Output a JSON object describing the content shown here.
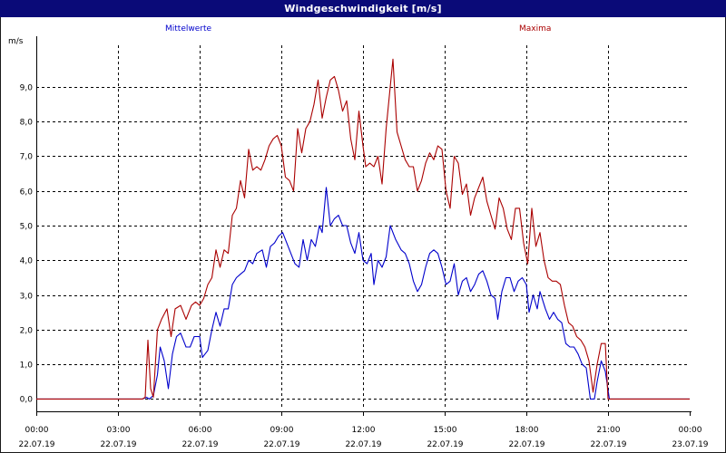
{
  "window": {
    "title": "Windgeschwindigkeit [m/s]"
  },
  "colors": {
    "titlebar": "#0a0a78",
    "mean": "#0000cc",
    "max": "#aa0000",
    "grid": "#000000"
  },
  "chart_data": {
    "type": "line",
    "title": "Windgeschwindigkeit [m/s]",
    "ylabel": "m/s",
    "xlabel": "",
    "ylim": [
      -0.25,
      10.2
    ],
    "xlim": [
      0,
      24
    ],
    "grid": true,
    "y_ticks": [
      0,
      1,
      2,
      3,
      4,
      5,
      6,
      7,
      8,
      9
    ],
    "y_tick_labels": [
      "0,0",
      "1,0",
      "2,0",
      "3,0",
      "4,0",
      "5,0",
      "6,0",
      "7,0",
      "8,0",
      "9,0"
    ],
    "x_ticks": [
      0,
      3,
      6,
      9,
      12,
      15,
      18,
      21,
      24
    ],
    "x_tick_labels": [
      {
        "time": "00:00",
        "date": "22.07.19"
      },
      {
        "time": "03:00",
        "date": "22.07.19"
      },
      {
        "time": "06:00",
        "date": "22.07.19"
      },
      {
        "time": "09:00",
        "date": "22.07.19"
      },
      {
        "time": "12:00",
        "date": "22.07.19"
      },
      {
        "time": "15:00",
        "date": "22.07.19"
      },
      {
        "time": "18:00",
        "date": "22.07.19"
      },
      {
        "time": "21:00",
        "date": "22.07.19"
      },
      {
        "time": "00:00",
        "date": "23.07.19"
      }
    ],
    "legend": {
      "placement": "top"
    },
    "series": [
      {
        "name": "Mittelwerte",
        "color": "#0000cc",
        "points": [
          [
            0,
            0
          ],
          [
            1,
            0
          ],
          [
            2,
            0
          ],
          [
            3,
            0
          ],
          [
            3.9,
            0
          ],
          [
            4.05,
            0.05
          ],
          [
            4.15,
            0.0
          ],
          [
            4.3,
            0.1
          ],
          [
            4.45,
            0.7
          ],
          [
            4.55,
            1.5
          ],
          [
            4.7,
            1.1
          ],
          [
            4.85,
            0.3
          ],
          [
            5.0,
            1.3
          ],
          [
            5.15,
            1.8
          ],
          [
            5.3,
            1.9
          ],
          [
            5.5,
            1.5
          ],
          [
            5.65,
            1.5
          ],
          [
            5.8,
            1.8
          ],
          [
            6.0,
            1.8
          ],
          [
            6.1,
            1.2
          ],
          [
            6.2,
            1.3
          ],
          [
            6.3,
            1.4
          ],
          [
            6.45,
            2.0
          ],
          [
            6.6,
            2.5
          ],
          [
            6.75,
            2.1
          ],
          [
            6.9,
            2.6
          ],
          [
            7.05,
            2.6
          ],
          [
            7.2,
            3.3
          ],
          [
            7.35,
            3.5
          ],
          [
            7.5,
            3.6
          ],
          [
            7.65,
            3.7
          ],
          [
            7.8,
            4.0
          ],
          [
            7.95,
            3.9
          ],
          [
            8.1,
            4.2
          ],
          [
            8.3,
            4.3
          ],
          [
            8.45,
            3.8
          ],
          [
            8.6,
            4.4
          ],
          [
            8.75,
            4.5
          ],
          [
            8.9,
            4.7
          ],
          [
            9.05,
            4.8
          ],
          [
            9.2,
            4.5
          ],
          [
            9.35,
            4.2
          ],
          [
            9.5,
            3.9
          ],
          [
            9.65,
            3.8
          ],
          [
            9.8,
            4.6
          ],
          [
            9.95,
            4.0
          ],
          [
            10.1,
            4.6
          ],
          [
            10.25,
            4.4
          ],
          [
            10.4,
            5.0
          ],
          [
            10.5,
            4.8
          ],
          [
            10.65,
            6.1
          ],
          [
            10.8,
            5.0
          ],
          [
            10.95,
            5.2
          ],
          [
            11.1,
            5.3
          ],
          [
            11.25,
            5.0
          ],
          [
            11.4,
            5.0
          ],
          [
            11.55,
            4.5
          ],
          [
            11.7,
            4.2
          ],
          [
            11.85,
            4.8
          ],
          [
            12.0,
            4.0
          ],
          [
            12.15,
            3.9
          ],
          [
            12.3,
            4.2
          ],
          [
            12.4,
            3.3
          ],
          [
            12.55,
            4.0
          ],
          [
            12.7,
            3.8
          ],
          [
            12.85,
            4.1
          ],
          [
            13.0,
            5.0
          ],
          [
            13.2,
            4.6
          ],
          [
            13.4,
            4.3
          ],
          [
            13.55,
            4.2
          ],
          [
            13.7,
            3.9
          ],
          [
            13.85,
            3.4
          ],
          [
            14.0,
            3.1
          ],
          [
            14.15,
            3.3
          ],
          [
            14.3,
            3.8
          ],
          [
            14.45,
            4.2
          ],
          [
            14.6,
            4.3
          ],
          [
            14.75,
            4.2
          ],
          [
            14.9,
            3.8
          ],
          [
            15.05,
            3.3
          ],
          [
            15.2,
            3.4
          ],
          [
            15.35,
            3.9
          ],
          [
            15.5,
            3.0
          ],
          [
            15.65,
            3.4
          ],
          [
            15.8,
            3.5
          ],
          [
            15.95,
            3.1
          ],
          [
            16.1,
            3.3
          ],
          [
            16.25,
            3.6
          ],
          [
            16.4,
            3.7
          ],
          [
            16.55,
            3.4
          ],
          [
            16.7,
            3.0
          ],
          [
            16.85,
            2.9
          ],
          [
            16.95,
            2.3
          ],
          [
            17.1,
            3.1
          ],
          [
            17.25,
            3.5
          ],
          [
            17.4,
            3.5
          ],
          [
            17.55,
            3.1
          ],
          [
            17.7,
            3.4
          ],
          [
            17.85,
            3.5
          ],
          [
            18.0,
            3.3
          ],
          [
            18.1,
            2.5
          ],
          [
            18.25,
            3.0
          ],
          [
            18.4,
            2.6
          ],
          [
            18.5,
            3.1
          ],
          [
            18.7,
            2.6
          ],
          [
            18.85,
            2.3
          ],
          [
            19.0,
            2.5
          ],
          [
            19.15,
            2.3
          ],
          [
            19.3,
            2.2
          ],
          [
            19.45,
            1.6
          ],
          [
            19.6,
            1.5
          ],
          [
            19.75,
            1.5
          ],
          [
            19.9,
            1.3
          ],
          [
            20.05,
            1.0
          ],
          [
            20.2,
            0.9
          ],
          [
            20.35,
            0.0
          ],
          [
            20.5,
            0.0
          ],
          [
            20.6,
            0.5
          ],
          [
            20.75,
            1.1
          ],
          [
            20.9,
            0.8
          ],
          [
            21.05,
            0.0
          ],
          [
            21.2,
            0
          ],
          [
            22,
            0
          ],
          [
            23,
            0
          ],
          [
            24,
            0
          ]
        ]
      },
      {
        "name": "Maxima",
        "color": "#aa0000",
        "points": [
          [
            0,
            0
          ],
          [
            1,
            0
          ],
          [
            2,
            0
          ],
          [
            3,
            0
          ],
          [
            3.9,
            0
          ],
          [
            4.0,
            0.05
          ],
          [
            4.1,
            1.7
          ],
          [
            4.2,
            0.3
          ],
          [
            4.3,
            0.05
          ],
          [
            4.45,
            2.0
          ],
          [
            4.6,
            2.3
          ],
          [
            4.8,
            2.6
          ],
          [
            4.95,
            1.8
          ],
          [
            5.1,
            2.6
          ],
          [
            5.3,
            2.7
          ],
          [
            5.5,
            2.3
          ],
          [
            5.7,
            2.7
          ],
          [
            5.85,
            2.8
          ],
          [
            6.0,
            2.7
          ],
          [
            6.15,
            2.9
          ],
          [
            6.3,
            3.3
          ],
          [
            6.45,
            3.5
          ],
          [
            6.6,
            4.3
          ],
          [
            6.75,
            3.8
          ],
          [
            6.9,
            4.3
          ],
          [
            7.05,
            4.2
          ],
          [
            7.2,
            5.3
          ],
          [
            7.35,
            5.5
          ],
          [
            7.5,
            6.3
          ],
          [
            7.65,
            5.8
          ],
          [
            7.8,
            7.2
          ],
          [
            7.95,
            6.6
          ],
          [
            8.1,
            6.7
          ],
          [
            8.25,
            6.6
          ],
          [
            8.4,
            6.9
          ],
          [
            8.55,
            7.3
          ],
          [
            8.7,
            7.5
          ],
          [
            8.85,
            7.6
          ],
          [
            9.0,
            7.3
          ],
          [
            9.15,
            6.4
          ],
          [
            9.3,
            6.3
          ],
          [
            9.45,
            6.0
          ],
          [
            9.6,
            7.8
          ],
          [
            9.75,
            7.1
          ],
          [
            9.9,
            7.8
          ],
          [
            10.05,
            8.0
          ],
          [
            10.2,
            8.5
          ],
          [
            10.35,
            9.2
          ],
          [
            10.5,
            8.1
          ],
          [
            10.65,
            8.7
          ],
          [
            10.8,
            9.2
          ],
          [
            10.95,
            9.3
          ],
          [
            11.1,
            8.9
          ],
          [
            11.25,
            8.3
          ],
          [
            11.4,
            8.6
          ],
          [
            11.55,
            7.5
          ],
          [
            11.7,
            6.9
          ],
          [
            11.85,
            8.3
          ],
          [
            12.0,
            7.3
          ],
          [
            12.1,
            6.7
          ],
          [
            12.25,
            6.8
          ],
          [
            12.4,
            6.7
          ],
          [
            12.55,
            7.0
          ],
          [
            12.7,
            6.2
          ],
          [
            12.85,
            7.8
          ],
          [
            13.0,
            9.0
          ],
          [
            13.1,
            9.8
          ],
          [
            13.25,
            7.7
          ],
          [
            13.4,
            7.3
          ],
          [
            13.55,
            6.9
          ],
          [
            13.7,
            6.7
          ],
          [
            13.85,
            6.7
          ],
          [
            14.0,
            6.0
          ],
          [
            14.15,
            6.3
          ],
          [
            14.3,
            6.8
          ],
          [
            14.45,
            7.1
          ],
          [
            14.6,
            6.9
          ],
          [
            14.75,
            7.3
          ],
          [
            14.9,
            7.2
          ],
          [
            15.05,
            6.0
          ],
          [
            15.2,
            5.5
          ],
          [
            15.35,
            7.0
          ],
          [
            15.5,
            6.8
          ],
          [
            15.65,
            5.9
          ],
          [
            15.8,
            6.2
          ],
          [
            15.95,
            5.3
          ],
          [
            16.1,
            5.8
          ],
          [
            16.25,
            6.1
          ],
          [
            16.4,
            6.4
          ],
          [
            16.55,
            5.7
          ],
          [
            16.7,
            5.3
          ],
          [
            16.85,
            4.9
          ],
          [
            17.0,
            5.8
          ],
          [
            17.15,
            5.5
          ],
          [
            17.3,
            4.9
          ],
          [
            17.45,
            4.6
          ],
          [
            17.6,
            5.5
          ],
          [
            17.75,
            5.5
          ],
          [
            17.9,
            4.5
          ],
          [
            18.05,
            3.9
          ],
          [
            18.2,
            5.5
          ],
          [
            18.35,
            4.4
          ],
          [
            18.5,
            4.8
          ],
          [
            18.65,
            4.0
          ],
          [
            18.8,
            3.5
          ],
          [
            18.95,
            3.4
          ],
          [
            19.1,
            3.4
          ],
          [
            19.25,
            3.3
          ],
          [
            19.4,
            2.7
          ],
          [
            19.55,
            2.2
          ],
          [
            19.7,
            2.1
          ],
          [
            19.85,
            1.8
          ],
          [
            20.0,
            1.7
          ],
          [
            20.15,
            1.5
          ],
          [
            20.3,
            1.1
          ],
          [
            20.45,
            0.2
          ],
          [
            20.6,
            1.0
          ],
          [
            20.75,
            1.6
          ],
          [
            20.9,
            1.6
          ],
          [
            21.0,
            0.0
          ],
          [
            21.2,
            0
          ],
          [
            22,
            0
          ],
          [
            23,
            0
          ],
          [
            24,
            0
          ]
        ]
      }
    ]
  }
}
